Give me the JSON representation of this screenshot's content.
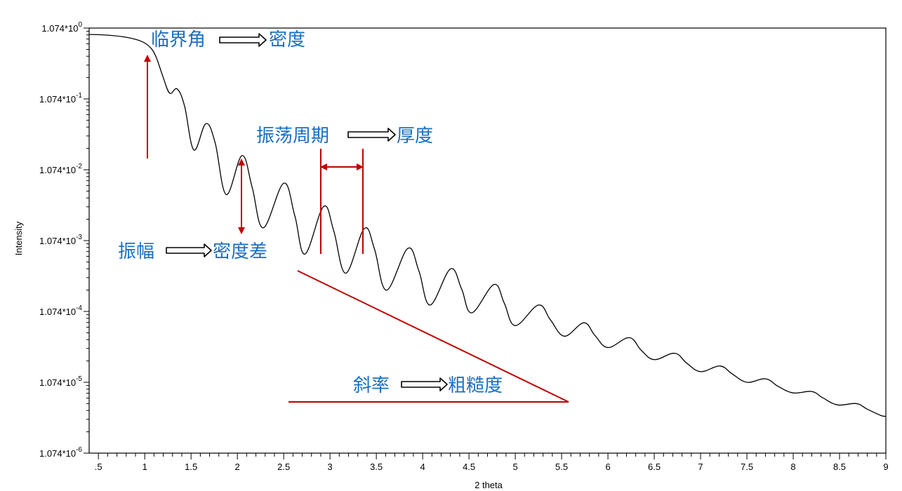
{
  "chart_data": {
    "type": "line",
    "xlabel": "2 theta",
    "ylabel": "Intensity",
    "xlim": [
      0.4,
      9.0
    ],
    "ylim_log10": [
      -6,
      0
    ],
    "y_scale": "log",
    "grid": false,
    "legend": "none",
    "x_ticks": [
      ".5",
      "1",
      "1.5",
      "2",
      "2.5",
      "3",
      "3.5",
      "4",
      "4.5",
      "5",
      "5.5",
      "6",
      "6.5",
      "7",
      "7.5",
      "8",
      "8.5",
      "9"
    ],
    "y_ticks": [
      {
        "exp": 0,
        "base": "1.074*10",
        "sup": "0"
      },
      {
        "exp": -1,
        "base": "1.074*10",
        "sup": "-1"
      },
      {
        "exp": -2,
        "base": "1.074*10",
        "sup": "-2"
      },
      {
        "exp": -3,
        "base": "1.074*10",
        "sup": "-3"
      },
      {
        "exp": -4,
        "base": "1.074*10",
        "sup": "-4"
      },
      {
        "exp": -5,
        "base": "1.074*10",
        "sup": "-5"
      },
      {
        "exp": -6,
        "base": "1.074*10",
        "sup": "-6"
      }
    ],
    "series": [
      {
        "color": "#000000",
        "points": [
          [
            0.4,
            -0.09
          ],
          [
            0.6,
            -0.1
          ],
          [
            0.8,
            -0.13
          ],
          [
            0.95,
            -0.18
          ],
          [
            1.05,
            -0.26
          ],
          [
            1.12,
            -0.4
          ],
          [
            1.2,
            -0.7
          ],
          [
            1.27,
            -0.92
          ],
          [
            1.35,
            -0.86
          ],
          [
            1.43,
            -1.1
          ],
          [
            1.53,
            -1.72
          ],
          [
            1.66,
            -1.35
          ],
          [
            1.76,
            -1.62
          ],
          [
            1.88,
            -2.35
          ],
          [
            2.05,
            -1.8
          ],
          [
            2.16,
            -2.25
          ],
          [
            2.28,
            -2.82
          ],
          [
            2.5,
            -2.19
          ],
          [
            2.62,
            -2.65
          ],
          [
            2.73,
            -3.19
          ],
          [
            2.93,
            -2.52
          ],
          [
            3.04,
            -2.86
          ],
          [
            3.17,
            -3.46
          ],
          [
            3.37,
            -2.83
          ],
          [
            3.48,
            -3.12
          ],
          [
            3.61,
            -3.7
          ],
          [
            3.84,
            -3.11
          ],
          [
            3.96,
            -3.43
          ],
          [
            4.08,
            -3.91
          ],
          [
            4.3,
            -3.4
          ],
          [
            4.42,
            -3.68
          ],
          [
            4.53,
            -4.02
          ],
          [
            4.77,
            -3.62
          ],
          [
            4.88,
            -3.88
          ],
          [
            5.0,
            -4.2
          ],
          [
            5.25,
            -3.91
          ],
          [
            5.38,
            -4.12
          ],
          [
            5.53,
            -4.35
          ],
          [
            5.74,
            -4.16
          ],
          [
            5.86,
            -4.34
          ],
          [
            6.0,
            -4.51
          ],
          [
            6.23,
            -4.37
          ],
          [
            6.36,
            -4.55
          ],
          [
            6.5,
            -4.68
          ],
          [
            6.72,
            -4.59
          ],
          [
            6.85,
            -4.73
          ],
          [
            7.0,
            -4.85
          ],
          [
            7.21,
            -4.77
          ],
          [
            7.34,
            -4.88
          ],
          [
            7.5,
            -5.0
          ],
          [
            7.7,
            -4.95
          ],
          [
            7.84,
            -5.06
          ],
          [
            8.0,
            -5.15
          ],
          [
            8.2,
            -5.13
          ],
          [
            8.32,
            -5.22
          ],
          [
            8.48,
            -5.32
          ],
          [
            8.68,
            -5.3
          ],
          [
            8.8,
            -5.38
          ],
          [
            8.95,
            -5.47
          ],
          [
            9.0,
            -5.48
          ]
        ]
      }
    ],
    "annotations": [
      {
        "id": "critical-angle",
        "text": "临界角",
        "arrow_label": "密度"
      },
      {
        "id": "amplitude",
        "text": "振幅",
        "arrow_label": "密度差"
      },
      {
        "id": "period",
        "text": "振荡周期",
        "arrow_label": "厚度"
      },
      {
        "id": "slope",
        "text": "斜率",
        "arrow_label": "粗糙度"
      }
    ],
    "annotation_color": "#1a6fc2",
    "marker_color": "#c00000"
  }
}
